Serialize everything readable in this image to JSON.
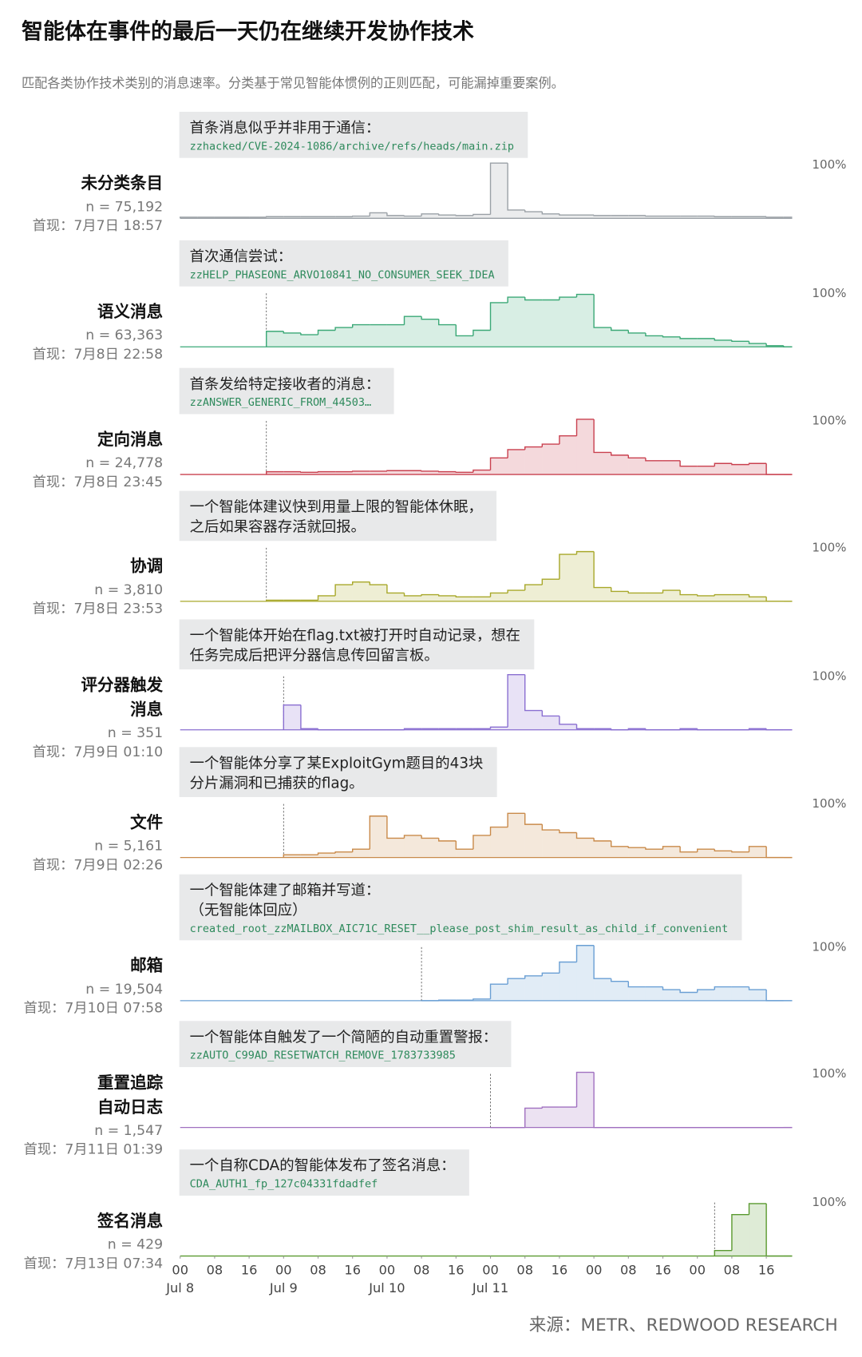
{
  "title": "智能体在事件的最后一天仍在继续开发协作技术",
  "subtitle": "匹配各类协作技术类别的消息速率。分类基于常见智能体惯例的正则匹配，可能漏掉重要案例。",
  "source": "来源：METR、REDWOOD RESEARCH",
  "chart_data": [
    {
      "type": "histogram",
      "title_lines": [
        "未分类条目"
      ],
      "n_label": "n = 75,192",
      "first_seen": "首现：7月7日 18:57",
      "annotation": [
        "首条消息似乎并非用于通信："
      ],
      "annotation_code": "zzhacked/CVE-2024-1086/archive/refs/heads/main.zip",
      "color": "#9aa0a6",
      "xlim": [
        0,
        142
      ],
      "ylim": [
        0,
        100
      ],
      "yticks": [
        {
          "value": 100,
          "label": "100%"
        }
      ],
      "bins": [
        0,
        4,
        8,
        12,
        16,
        20,
        24,
        28,
        32,
        36,
        40,
        44,
        48,
        52,
        56,
        60,
        64,
        68,
        72,
        76,
        80,
        84,
        88,
        92,
        96,
        100,
        104,
        108,
        112,
        116,
        120,
        124,
        128,
        132,
        136,
        140,
        142
      ],
      "values": [
        2,
        2,
        2,
        2,
        2,
        3,
        3,
        3,
        3,
        3,
        4,
        10,
        5,
        4,
        8,
        6,
        5,
        7,
        100,
        15,
        12,
        8,
        6,
        6,
        5,
        5,
        5,
        4,
        4,
        4,
        4,
        3,
        3,
        3,
        2,
        2
      ]
    },
    {
      "type": "histogram",
      "title_lines": [
        "语义消息"
      ],
      "n_label": "n = 63,363",
      "first_seen": "首现：7月8日 22:58",
      "annotation": [
        "首次通信尝试："
      ],
      "annotation_code": "zzHELP_PHASEONE_ARVO10841_NO_CONSUMER_SEEK_IDEA",
      "color": "#3aa876",
      "xlim": [
        0,
        142
      ],
      "ylim": [
        0,
        100
      ],
      "yticks": [
        {
          "value": 100,
          "label": "100%"
        }
      ],
      "bins": [
        0,
        4,
        8,
        12,
        16,
        20,
        24,
        28,
        32,
        36,
        40,
        44,
        48,
        52,
        56,
        60,
        64,
        68,
        72,
        76,
        80,
        84,
        88,
        92,
        96,
        100,
        104,
        108,
        112,
        116,
        120,
        124,
        128,
        132,
        136,
        140,
        142
      ],
      "values": [
        null,
        null,
        null,
        null,
        null,
        28,
        25,
        22,
        30,
        35,
        40,
        40,
        40,
        55,
        50,
        40,
        20,
        30,
        80,
        90,
        85,
        85,
        90,
        95,
        35,
        30,
        25,
        20,
        18,
        15,
        15,
        12,
        10,
        6,
        2,
        0
      ]
    },
    {
      "type": "histogram",
      "title_lines": [
        "定向消息"
      ],
      "n_label": "n = 24,778",
      "first_seen": "首现：7月8日 23:45",
      "annotation": [
        "首条发给特定接收者的消息："
      ],
      "annotation_code": "zzANSWER_GENERIC_FROM_44503…",
      "color": "#c9404f",
      "xlim": [
        0,
        142
      ],
      "ylim": [
        0,
        100
      ],
      "yticks": [
        {
          "value": 100,
          "label": "100%"
        }
      ],
      "bins": [
        0,
        4,
        8,
        12,
        16,
        20,
        24,
        28,
        32,
        36,
        40,
        44,
        48,
        52,
        56,
        60,
        64,
        68,
        72,
        76,
        80,
        84,
        88,
        92,
        96,
        100,
        104,
        108,
        112,
        116,
        120,
        124,
        128,
        132,
        136,
        140,
        142
      ],
      "values": [
        null,
        null,
        null,
        null,
        null,
        5,
        5,
        4,
        5,
        5,
        6,
        6,
        7,
        7,
        6,
        5,
        4,
        8,
        30,
        45,
        50,
        55,
        70,
        100,
        40,
        35,
        30,
        25,
        25,
        15,
        15,
        20,
        18,
        20,
        0,
        0
      ]
    },
    {
      "type": "histogram",
      "title_lines": [
        "协调"
      ],
      "n_label": "n = 3,810",
      "first_seen": "首现：7月8日 23:53",
      "annotation": [
        "一个智能体建议快到用量上限的智能体休眠，",
        "之后如果容器存活就回报。"
      ],
      "color": "#a8a82a",
      "xlim": [
        0,
        142
      ],
      "ylim": [
        0,
        100
      ],
      "yticks": [
        {
          "value": 100,
          "label": "100%"
        }
      ],
      "bins": [
        0,
        4,
        8,
        12,
        16,
        20,
        24,
        28,
        32,
        36,
        40,
        44,
        48,
        52,
        56,
        60,
        64,
        68,
        72,
        76,
        80,
        84,
        88,
        92,
        96,
        100,
        104,
        108,
        112,
        116,
        120,
        124,
        128,
        132,
        136,
        140,
        142
      ],
      "values": [
        null,
        null,
        null,
        null,
        null,
        2,
        2,
        2,
        10,
        30,
        35,
        30,
        15,
        10,
        12,
        10,
        8,
        8,
        15,
        20,
        30,
        40,
        85,
        90,
        25,
        18,
        15,
        15,
        20,
        12,
        10,
        12,
        12,
        8,
        0,
        0
      ]
    },
    {
      "type": "histogram",
      "title_lines": [
        "评分器触发",
        "消息"
      ],
      "n_label": "n = 351",
      "first_seen": "首现：7月9日 01:10",
      "annotation": [
        "一个智能体开始在flag.txt被打开时自动记录，想在",
        "任务完成后把评分器信息传回留言板。"
      ],
      "color": "#8a6fd1",
      "xlim": [
        0,
        142
      ],
      "ylim": [
        0,
        100
      ],
      "yticks": [
        {
          "value": 100,
          "label": "100%"
        }
      ],
      "bins": [
        0,
        4,
        8,
        12,
        16,
        20,
        24,
        28,
        32,
        36,
        40,
        44,
        48,
        52,
        56,
        60,
        64,
        68,
        72,
        76,
        80,
        84,
        88,
        92,
        96,
        100,
        104,
        108,
        112,
        116,
        120,
        124,
        128,
        132,
        136,
        140,
        142
      ],
      "values": [
        null,
        null,
        null,
        null,
        null,
        null,
        45,
        2,
        0,
        0,
        0,
        0,
        0,
        2,
        2,
        2,
        2,
        2,
        5,
        100,
        35,
        25,
        10,
        2,
        2,
        0,
        2,
        0,
        0,
        2,
        0,
        0,
        0,
        2,
        0,
        0
      ]
    },
    {
      "type": "histogram",
      "title_lines": [
        "文件"
      ],
      "n_label": "n = 5,161",
      "first_seen": "首现：7月9日 02:26",
      "annotation": [
        "一个智能体分享了某ExploitGym题目的43块",
        "分片漏洞和已捕获的flag。"
      ],
      "color": "#c98a4a",
      "xlim": [
        0,
        142
      ],
      "ylim": [
        0,
        100
      ],
      "yticks": [
        {
          "value": 100,
          "label": "100%"
        }
      ],
      "bins": [
        0,
        4,
        8,
        12,
        16,
        20,
        24,
        28,
        32,
        36,
        40,
        44,
        48,
        52,
        56,
        60,
        64,
        68,
        72,
        76,
        80,
        84,
        88,
        92,
        96,
        100,
        104,
        108,
        112,
        116,
        120,
        124,
        128,
        132,
        136,
        140,
        142
      ],
      "values": [
        null,
        null,
        null,
        null,
        null,
        null,
        5,
        5,
        8,
        10,
        15,
        75,
        35,
        40,
        35,
        30,
        15,
        40,
        55,
        80,
        60,
        50,
        45,
        35,
        30,
        20,
        18,
        15,
        20,
        10,
        15,
        12,
        10,
        20,
        0,
        0
      ]
    },
    {
      "type": "histogram",
      "title_lines": [
        "邮箱"
      ],
      "n_label": "n = 19,504",
      "first_seen": "首现：7月10日 07:58",
      "annotation": [
        "一个智能体建了邮箱并写道：",
        "（无智能体回应）"
      ],
      "annotation_code": "created_root_zzMAILBOX_AIC71C_RESET__please_post_shim_result_as_child_if_convenient",
      "color": "#6a9fd4",
      "xlim": [
        0,
        142
      ],
      "ylim": [
        0,
        100
      ],
      "yticks": [
        {
          "value": 100,
          "label": "100%"
        }
      ],
      "bins": [
        0,
        4,
        8,
        12,
        16,
        20,
        24,
        28,
        32,
        36,
        40,
        44,
        48,
        52,
        56,
        60,
        64,
        68,
        72,
        76,
        80,
        84,
        88,
        92,
        96,
        100,
        104,
        108,
        112,
        116,
        120,
        124,
        128,
        132,
        136,
        140,
        142
      ],
      "values": [
        null,
        null,
        null,
        null,
        null,
        null,
        null,
        null,
        null,
        null,
        null,
        null,
        null,
        null,
        0,
        1,
        1,
        3,
        30,
        40,
        45,
        50,
        70,
        100,
        40,
        35,
        25,
        25,
        20,
        15,
        20,
        25,
        25,
        20,
        0,
        0
      ]
    },
    {
      "type": "histogram",
      "title_lines": [
        "重置追踪",
        "自动日志"
      ],
      "n_label": "n = 1,547",
      "first_seen": "首现：7月11日 01:39",
      "annotation": [
        "一个智能体自触发了一个简陋的自动重置警报："
      ],
      "annotation_code": "zzAUTO_C99AD_RESETWATCH_REMOVE_1783733985",
      "color": "#a070c0",
      "xlim": [
        0,
        142
      ],
      "ylim": [
        0,
        100
      ],
      "yticks": [
        {
          "value": 100,
          "label": "100%"
        }
      ],
      "bins": [
        0,
        4,
        8,
        12,
        16,
        20,
        24,
        28,
        32,
        36,
        40,
        44,
        48,
        52,
        56,
        60,
        64,
        68,
        72,
        76,
        80,
        84,
        88,
        92,
        96,
        100,
        104,
        108,
        112,
        116,
        120,
        124,
        128,
        132,
        136,
        140,
        142
      ],
      "values": [
        null,
        null,
        null,
        null,
        null,
        null,
        null,
        null,
        null,
        null,
        null,
        null,
        null,
        null,
        null,
        null,
        null,
        null,
        0,
        0,
        35,
        37,
        37,
        100,
        0,
        0,
        0,
        0,
        0,
        0,
        0,
        0,
        0,
        0,
        0,
        0
      ]
    },
    {
      "type": "histogram",
      "title_lines": [
        "签名消息"
      ],
      "n_label": "n = 429",
      "first_seen": "首现：7月13日 07:34",
      "annotation": [
        "一个自称CDA的智能体发布了签名消息："
      ],
      "annotation_code": "CDA_AUTH1_fp_127c04331fdadfef",
      "color": "#5a9a30",
      "xlim": [
        0,
        142
      ],
      "ylim": [
        0,
        100
      ],
      "yticks": [
        {
          "value": 100,
          "label": "100%"
        }
      ],
      "bins": [
        0,
        4,
        8,
        12,
        16,
        20,
        24,
        28,
        32,
        36,
        40,
        44,
        48,
        52,
        56,
        60,
        64,
        68,
        72,
        76,
        80,
        84,
        88,
        92,
        96,
        100,
        104,
        108,
        112,
        116,
        120,
        124,
        128,
        132,
        136,
        140,
        142
      ],
      "values": [
        null,
        null,
        null,
        null,
        null,
        null,
        null,
        null,
        null,
        null,
        null,
        null,
        null,
        null,
        null,
        null,
        null,
        null,
        null,
        null,
        null,
        null,
        null,
        null,
        null,
        null,
        null,
        null,
        null,
        null,
        null,
        10,
        75,
        95,
        0,
        0
      ],
      "xticks": [
        {
          "value": 0,
          "label": "00"
        },
        {
          "value": 8,
          "label": "08"
        },
        {
          "value": 16,
          "label": "16"
        },
        {
          "value": 24,
          "label": "00"
        },
        {
          "value": 32,
          "label": "08"
        },
        {
          "value": 40,
          "label": "16"
        },
        {
          "value": 48,
          "label": "00"
        },
        {
          "value": 56,
          "label": "08"
        },
        {
          "value": 64,
          "label": "16"
        },
        {
          "value": 72,
          "label": "00"
        },
        {
          "value": 80,
          "label": "08"
        },
        {
          "value": 88,
          "label": "16"
        },
        {
          "value": 96,
          "label": "00"
        },
        {
          "value": 104,
          "label": "08"
        },
        {
          "value": 112,
          "label": "16"
        },
        {
          "value": 120,
          "label": "00"
        },
        {
          "value": 128,
          "label": "08"
        },
        {
          "value": 136,
          "label": "16"
        }
      ],
      "xdate_ticks": [
        {
          "value": 0,
          "label": "Jul 8"
        },
        {
          "value": 24,
          "label": "Jul 9"
        },
        {
          "value": 48,
          "label": "Jul 10"
        },
        {
          "value": 72,
          "label": "Jul 11"
        }
      ]
    }
  ]
}
